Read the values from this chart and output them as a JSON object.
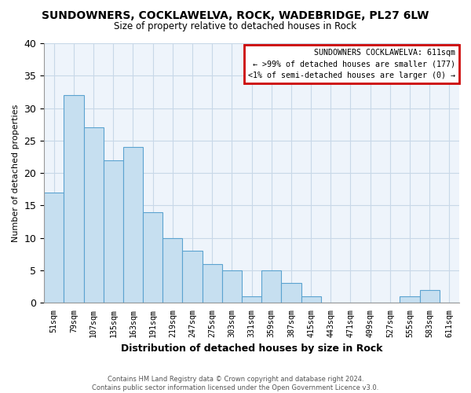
{
  "title": "SUNDOWNERS, COCKLAWELVA, ROCK, WADEBRIDGE, PL27 6LW",
  "subtitle": "Size of property relative to detached houses in Rock",
  "xlabel": "Distribution of detached houses by size in Rock",
  "ylabel": "Number of detached properties",
  "bin_labels": [
    "51sqm",
    "79sqm",
    "107sqm",
    "135sqm",
    "163sqm",
    "191sqm",
    "219sqm",
    "247sqm",
    "275sqm",
    "303sqm",
    "331sqm",
    "359sqm",
    "387sqm",
    "415sqm",
    "443sqm",
    "471sqm",
    "499sqm",
    "527sqm",
    "555sqm",
    "583sqm",
    "611sqm"
  ],
  "bin_values": [
    17,
    32,
    27,
    22,
    24,
    14,
    10,
    8,
    6,
    5,
    1,
    5,
    3,
    1,
    0,
    0,
    0,
    0,
    1,
    2,
    0
  ],
  "bar_color": "#c6dff0",
  "bar_edge_color": "#5ba3d0",
  "plot_bg_color": "#eef4fb",
  "ylim": [
    0,
    40
  ],
  "yticks": [
    0,
    5,
    10,
    15,
    20,
    25,
    30,
    35,
    40
  ],
  "legend_title": "SUNDOWNERS COCKLAWELVA: 611sqm",
  "legend_line1": "← >99% of detached houses are smaller (177)",
  "legend_line2": "<1% of semi-detached houses are larger (0) →",
  "legend_box_color": "#ffffff",
  "legend_box_edge_color": "#cc0000",
  "footer_line1": "Contains HM Land Registry data © Crown copyright and database right 2024.",
  "footer_line2": "Contains public sector information licensed under the Open Government Licence v3.0.",
  "grid_color": "#c8d8e8",
  "background_color": "#ffffff"
}
